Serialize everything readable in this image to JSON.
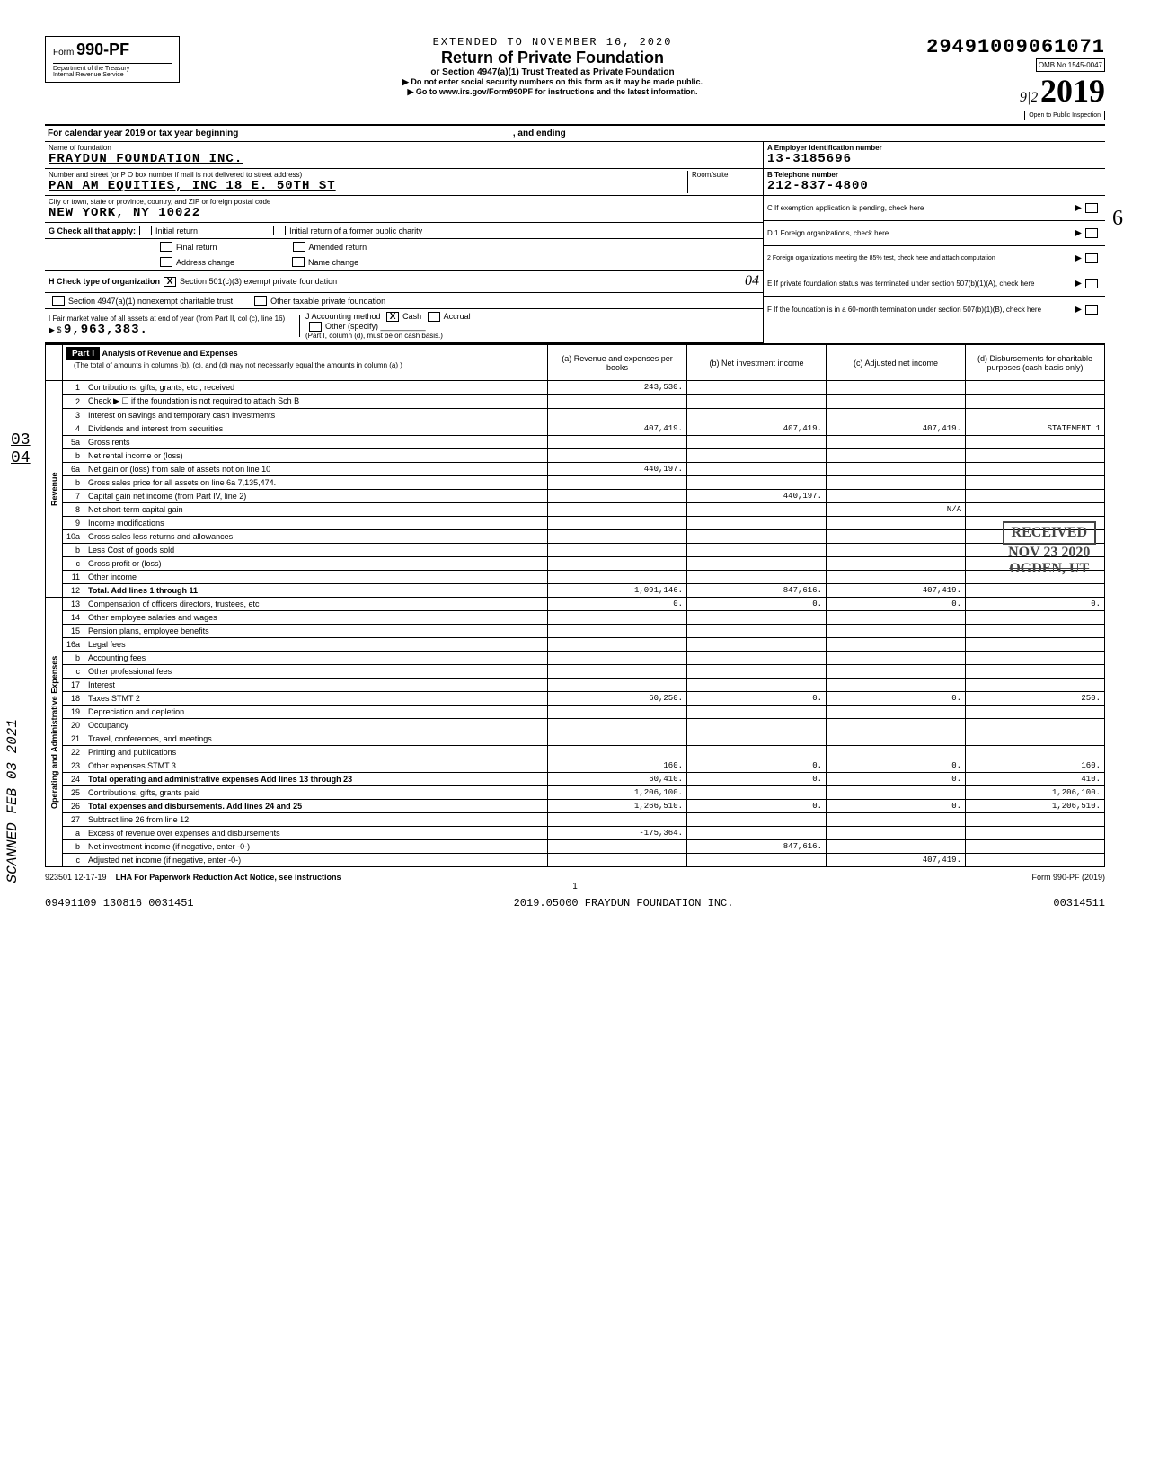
{
  "header": {
    "form_prefix": "Form",
    "form_number": "990-PF",
    "dept": "Department of the Treasury",
    "irs": "Internal Revenue Service",
    "extended": "EXTENDED TO NOVEMBER 16, 2020",
    "title": "Return of Private Foundation",
    "subtitle": "or Section 4947(a)(1) Trust Treated as Private Foundation",
    "note1": "▶ Do not enter social security numbers on this form as it may be made public.",
    "note2": "▶ Go to www.irs.gov/Form990PF for instructions and the latest information.",
    "dln": "29491009061071",
    "omb": "OMB No 1545-0047",
    "year": "2019",
    "inspect": "Open to Public Inspection",
    "handwritten_912": "9|2"
  },
  "calyear": {
    "text": "For calendar year 2019 or tax year beginning",
    "ending": ", and ending"
  },
  "name_block": {
    "label": "Name of foundation",
    "value": "FRAYDUN FOUNDATION INC.",
    "addr_label": "Number and street (or P O  box number if mail is not delivered to street address)",
    "room_label": "Room/suite",
    "addr_value": "PAN AM EQUITIES, INC 18 E. 50TH ST",
    "city_label": "City or town, state or province, country, and ZIP or foreign postal code",
    "city_value": "NEW YORK, NY   10022"
  },
  "ein_block": {
    "a_label": "A Employer identification number",
    "ein": "13-3185696",
    "b_label": "B  Telephone number",
    "phone": "212-837-4800",
    "c_label": "C  If exemption application is pending, check here",
    "d1_label": "D 1  Foreign organizations, check here",
    "d2_label": "2  Foreign organizations meeting the 85% test, check here and attach computation",
    "e_label": "E  If private foundation status was terminated under section 507(b)(1)(A), check here",
    "f_label": "F  If the foundation is in a 60-month termination under section 507(b)(1)(B), check here"
  },
  "g_row": {
    "label": "G  Check all that apply:",
    "initial": "Initial return",
    "final": "Final return",
    "address": "Address change",
    "initial_former": "Initial return of a former public charity",
    "amended": "Amended return",
    "name_change": "Name change"
  },
  "h_row": {
    "label": "H  Check type of organization",
    "opt1": "Section 501(c)(3) exempt private foundation",
    "opt2": "Section 4947(a)(1) nonexempt charitable trust",
    "opt3": "Other taxable private foundation",
    "hw_04": "04"
  },
  "i_row": {
    "label": "I   Fair market value of all assets at end of year (from Part II, col  (c), line 16)",
    "value": "9,963,383.",
    "j_label": "J   Accounting method",
    "cash": "Cash",
    "accrual": "Accrual",
    "other": "Other (specify)",
    "note": "(Part I, column (d), must be on cash basis.)"
  },
  "part1": {
    "title": "Part I",
    "desc": "Analysis of Revenue and Expenses",
    "subdesc": "(The total of amounts in columns (b), (c), and (d) may not necessarily equal the amounts in column (a) )",
    "col_a": "(a) Revenue and expenses per books",
    "col_b": "(b) Net investment income",
    "col_c": "(c) Adjusted net income",
    "col_d": "(d) Disbursements for charitable purposes (cash basis only)"
  },
  "rows": [
    {
      "n": "1",
      "label": "Contributions, gifts, grants, etc , received",
      "a": "243,530.",
      "b": "",
      "c": "",
      "d": ""
    },
    {
      "n": "2",
      "label": "Check ▶ ☐  if the foundation is not required to attach Sch B",
      "a": "",
      "b": "",
      "c": "",
      "d": ""
    },
    {
      "n": "3",
      "label": "Interest on savings and temporary cash investments",
      "a": "",
      "b": "",
      "c": "",
      "d": ""
    },
    {
      "n": "4",
      "label": "Dividends and interest from securities",
      "a": "407,419.",
      "b": "407,419.",
      "c": "407,419.",
      "d": "STATEMENT 1"
    },
    {
      "n": "5a",
      "label": "Gross rents",
      "a": "",
      "b": "",
      "c": "",
      "d": ""
    },
    {
      "n": "b",
      "label": "Net rental income or (loss)",
      "a": "",
      "b": "",
      "c": "",
      "d": ""
    },
    {
      "n": "6a",
      "label": "Net gain or (loss) from sale of assets not on line 10",
      "a": "440,197.",
      "b": "",
      "c": "",
      "d": ""
    },
    {
      "n": "b",
      "label": "Gross sales price for all assets on line 6a      7,135,474.",
      "a": "",
      "b": "",
      "c": "",
      "d": ""
    },
    {
      "n": "7",
      "label": "Capital gain net income (from Part IV, line 2)",
      "a": "",
      "b": "440,197.",
      "c": "",
      "d": ""
    },
    {
      "n": "8",
      "label": "Net short-term capital gain",
      "a": "",
      "b": "",
      "c": "N/A",
      "d": ""
    },
    {
      "n": "9",
      "label": "Income modifications",
      "a": "",
      "b": "",
      "c": "",
      "d": ""
    },
    {
      "n": "10a",
      "label": "Gross sales less returns and allowances",
      "a": "",
      "b": "",
      "c": "",
      "d": ""
    },
    {
      "n": "b",
      "label": "Less  Cost of goods sold",
      "a": "",
      "b": "",
      "c": "",
      "d": ""
    },
    {
      "n": "c",
      "label": "Gross profit or (loss)",
      "a": "",
      "b": "",
      "c": "",
      "d": ""
    },
    {
      "n": "11",
      "label": "Other income",
      "a": "",
      "b": "",
      "c": "",
      "d": ""
    },
    {
      "n": "12",
      "label": "Total. Add lines 1 through 11",
      "a": "1,091,146.",
      "b": "847,616.",
      "c": "407,419.",
      "d": ""
    },
    {
      "n": "13",
      "label": "Compensation of officers  directors, trustees, etc",
      "a": "0.",
      "b": "0.",
      "c": "0.",
      "d": "0."
    },
    {
      "n": "14",
      "label": "Other employee salaries and wages",
      "a": "",
      "b": "",
      "c": "",
      "d": ""
    },
    {
      "n": "15",
      "label": "Pension plans, employee benefits",
      "a": "",
      "b": "",
      "c": "",
      "d": ""
    },
    {
      "n": "16a",
      "label": "Legal fees",
      "a": "",
      "b": "",
      "c": "",
      "d": ""
    },
    {
      "n": "b",
      "label": "Accounting fees",
      "a": "",
      "b": "",
      "c": "",
      "d": ""
    },
    {
      "n": "c",
      "label": "Other professional fees",
      "a": "",
      "b": "",
      "c": "",
      "d": ""
    },
    {
      "n": "17",
      "label": "Interest",
      "a": "",
      "b": "",
      "c": "",
      "d": ""
    },
    {
      "n": "18",
      "label": "Taxes                          STMT 2",
      "a": "60,250.",
      "b": "0.",
      "c": "0.",
      "d": "250."
    },
    {
      "n": "19",
      "label": "Depreciation and depletion",
      "a": "",
      "b": "",
      "c": "",
      "d": ""
    },
    {
      "n": "20",
      "label": "Occupancy",
      "a": "",
      "b": "",
      "c": "",
      "d": ""
    },
    {
      "n": "21",
      "label": "Travel, conferences, and meetings",
      "a": "",
      "b": "",
      "c": "",
      "d": ""
    },
    {
      "n": "22",
      "label": "Printing and publications",
      "a": "",
      "b": "",
      "c": "",
      "d": ""
    },
    {
      "n": "23",
      "label": "Other expenses                 STMT 3",
      "a": "160.",
      "b": "0.",
      "c": "0.",
      "d": "160."
    },
    {
      "n": "24",
      "label": "Total operating and administrative expenses  Add lines 13 through 23",
      "a": "60,410.",
      "b": "0.",
      "c": "0.",
      "d": "410."
    },
    {
      "n": "25",
      "label": "Contributions, gifts, grants paid",
      "a": "1,206,100.",
      "b": "",
      "c": "",
      "d": "1,206,100."
    },
    {
      "n": "26",
      "label": "Total expenses and disbursements. Add lines 24 and 25",
      "a": "1,266,510.",
      "b": "0.",
      "c": "0.",
      "d": "1,206,510."
    },
    {
      "n": "27",
      "label": "Subtract line 26 from line 12.",
      "a": "",
      "b": "",
      "c": "",
      "d": ""
    },
    {
      "n": "a",
      "label": "Excess of revenue over expenses and disbursements",
      "a": "-175,364.",
      "b": "",
      "c": "",
      "d": ""
    },
    {
      "n": "b",
      "label": "Net investment income (if negative, enter -0-)",
      "a": "",
      "b": "847,616.",
      "c": "",
      "d": ""
    },
    {
      "n": "c",
      "label": "Adjusted net income  (if negative, enter -0-)",
      "a": "",
      "b": "",
      "c": "407,419.",
      "d": ""
    }
  ],
  "side_labels": {
    "revenue": "Revenue",
    "expenses": "Operating and Administrative Expenses"
  },
  "stamps": {
    "received": "RECEIVED",
    "received_date": "NOV 23 2020",
    "received_loc": "OGDEN, UT",
    "scanned": "SCANNED  FEB 03 2021",
    "margin_frac": "03\n04",
    "hw_margin": "6"
  },
  "footer": {
    "code": "923501  12-17-19",
    "lha": "LHA   For Paperwork Reduction Act Notice, see instructions",
    "page": "1",
    "form": "Form 990-PF (2019)",
    "bottom_left": "09491109 130816 0031451",
    "bottom_center": "2019.05000 FRAYDUN FOUNDATION INC.",
    "bottom_right": "00314511"
  }
}
